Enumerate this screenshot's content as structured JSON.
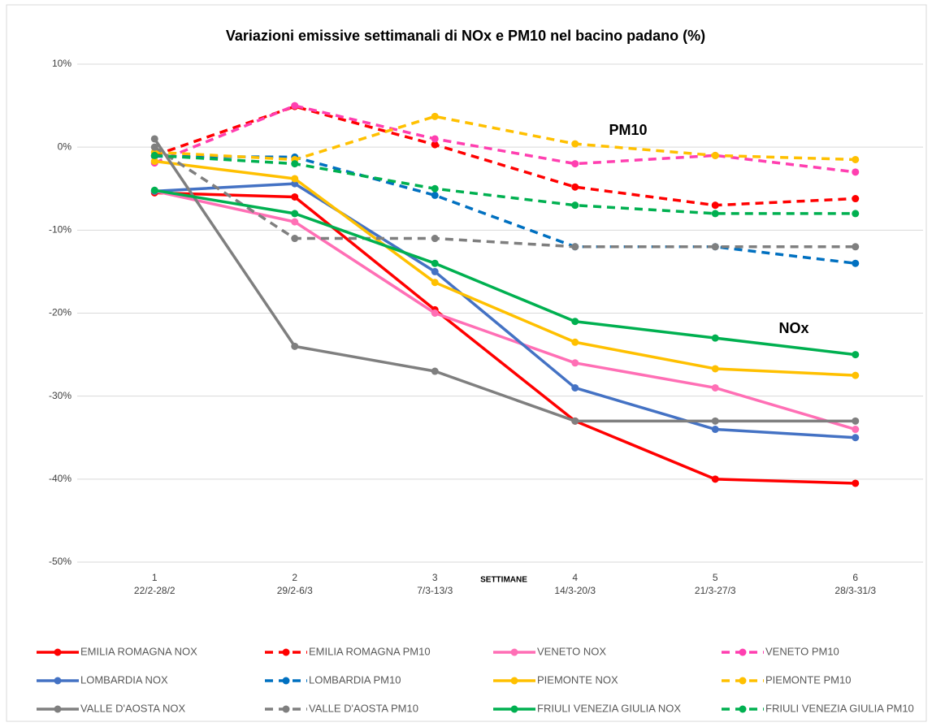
{
  "chart_data": {
    "type": "line",
    "title": "Variazioni emissive settimanali di NOx e PM10 nel bacino padano (%)",
    "x_label": "SETTIMANE",
    "annotations": [
      {
        "text": "PM10"
      },
      {
        "text": "NOx"
      }
    ],
    "categories": [
      [
        "1",
        "22/2-28/2"
      ],
      [
        "2",
        "29/2-6/3"
      ],
      [
        "3",
        "7/3-13/3"
      ],
      [
        "4",
        "14/3-20/3"
      ],
      [
        "5",
        "21/3-27/3"
      ],
      [
        "6",
        "28/3-31/3"
      ]
    ],
    "ylim": [
      -50,
      10
    ],
    "yticks": [
      {
        "value": -50,
        "label": "-50%"
      },
      {
        "value": -40,
        "label": "-40%"
      },
      {
        "value": -30,
        "label": "-30%"
      },
      {
        "value": -20,
        "label": "-20%"
      },
      {
        "value": -10,
        "label": "-10%"
      },
      {
        "value": 0,
        "label": "0%"
      },
      {
        "value": 10,
        "label": "10%"
      }
    ],
    "grid": true,
    "legend": "bottom",
    "series": [
      {
        "name": "EMILIA ROMAGNA NOX",
        "color": "#ff0000",
        "dashed": false,
        "values": [
          -5.5,
          -6,
          -19.6,
          -33,
          -40,
          -40.5
        ]
      },
      {
        "name": "EMILIA ROMAGNA PM10",
        "color": "#ff0000",
        "dashed": true,
        "values": [
          -1,
          4.9,
          0.3,
          -4.8,
          -7,
          -6.2
        ]
      },
      {
        "name": "VENETO NOX",
        "color": "#ff6fb5",
        "dashed": false,
        "values": [
          -5.3,
          -9,
          -20,
          -26,
          -29,
          -34
        ]
      },
      {
        "name": "VENETO PM10",
        "color": "#ff3fb0",
        "dashed": true,
        "values": [
          -1.9,
          5,
          1,
          -2,
          -1,
          -3
        ]
      },
      {
        "name": "LOMBARDIA NOX",
        "color": "#4472c4",
        "dashed": false,
        "values": [
          -5.3,
          -4.4,
          -15,
          -29,
          -34,
          -35
        ]
      },
      {
        "name": "LOMBARDIA PM10",
        "color": "#0070c0",
        "dashed": true,
        "values": [
          -1.1,
          -1.2,
          -5.8,
          -12,
          -12,
          -14
        ]
      },
      {
        "name": "PIEMONTE NOX",
        "color": "#ffc000",
        "dashed": false,
        "values": [
          -1.7,
          -3.8,
          -16.3,
          -23.5,
          -26.7,
          -27.5
        ]
      },
      {
        "name": "PIEMONTE PM10",
        "color": "#ffc000",
        "dashed": true,
        "values": [
          -0.6,
          -1.5,
          3.7,
          0.4,
          -1,
          -1.5
        ]
      },
      {
        "name": "VALLE D'AOSTA NOX",
        "color": "#7f7f7f",
        "dashed": false,
        "values": [
          1,
          -24,
          -27,
          -33,
          -33,
          -33
        ]
      },
      {
        "name": "VALLE D'AOSTA PM10",
        "color": "#7f7f7f",
        "dashed": true,
        "values": [
          0,
          -11,
          -11,
          -12,
          -12,
          -12
        ]
      },
      {
        "name": "FRIULI VENEZIA GIULIA NOX",
        "color": "#00b050",
        "dashed": false,
        "values": [
          -5.2,
          -8,
          -14,
          -21,
          -23,
          -25
        ]
      },
      {
        "name": "FRIULI VENEZIA GIULIA PM10",
        "color": "#00b050",
        "dashed": true,
        "values": [
          -1,
          -2,
          -5,
          -7,
          -8,
          -8
        ]
      }
    ]
  }
}
